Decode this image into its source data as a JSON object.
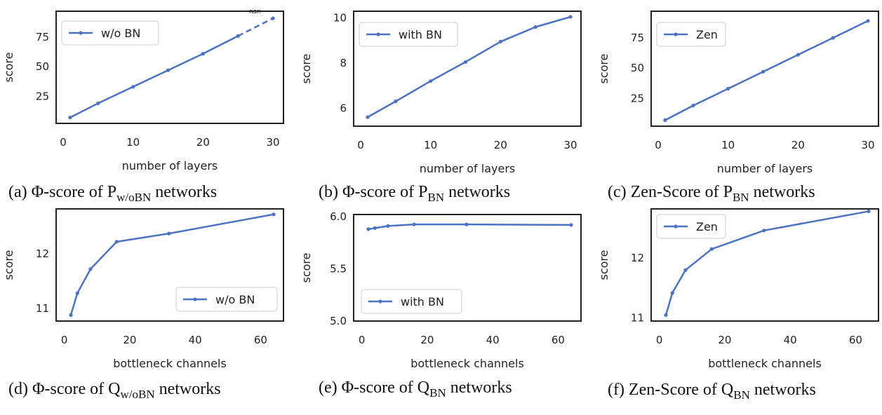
{
  "colors": {
    "line": "#4c72c4",
    "frame": "#222222"
  },
  "chart_data": [
    {
      "type": "line",
      "xlabel": "number of layers",
      "ylabel": "score",
      "xlim": [
        -1,
        31.5
      ],
      "ylim": [
        2,
        97
      ],
      "xticks": [
        0,
        10,
        20,
        30
      ],
      "yticks": [
        25,
        50,
        75
      ],
      "legend": {
        "label": "w/o BN",
        "position": "top-left"
      },
      "x": [
        1,
        5,
        10,
        15,
        20,
        25
      ],
      "y": [
        7,
        19,
        33,
        47,
        61,
        76
      ],
      "dashed_segment": {
        "x": [
          25,
          30
        ],
        "y": [
          76,
          91
        ]
      },
      "annotation": "nan",
      "caption": {
        "prefix": "(a) Φ-score of P",
        "sub": "w/oBN",
        "suffix": " networks"
      }
    },
    {
      "type": "line",
      "xlabel": "number of layers",
      "ylabel": "score",
      "xlim": [
        -1,
        31.5
      ],
      "ylim": [
        5.2,
        10.3
      ],
      "xticks": [
        0,
        10,
        20,
        30
      ],
      "yticks": [
        6,
        8,
        10
      ],
      "legend": {
        "label": "with BN",
        "position": "top-left"
      },
      "x": [
        1,
        5,
        10,
        15,
        20,
        25,
        30
      ],
      "y": [
        5.6,
        6.3,
        7.2,
        8.05,
        8.95,
        9.6,
        10.05
      ],
      "caption": {
        "prefix": "(b) Φ-score of P",
        "sub": "BN",
        "suffix": " networks"
      }
    },
    {
      "type": "line",
      "xlabel": "number of layers",
      "ylabel": "score",
      "xlim": [
        -1,
        31.5
      ],
      "ylim": [
        2,
        97
      ],
      "xticks": [
        0,
        10,
        20,
        30
      ],
      "yticks": [
        25,
        50,
        75
      ],
      "legend": {
        "label": "Zen",
        "position": "top-left"
      },
      "x": [
        1,
        5,
        10,
        15,
        20,
        25,
        30
      ],
      "y": [
        7,
        19,
        33,
        47,
        61,
        75,
        89
      ],
      "caption": {
        "prefix": "(c) Zen-Score of P",
        "sub": "BN",
        "suffix": " networks"
      }
    },
    {
      "type": "line",
      "xlabel": "bottleneck channels",
      "ylabel": "score",
      "xlim": [
        -2.5,
        67
      ],
      "ylim": [
        10.77,
        12.82
      ],
      "xticks": [
        0,
        20,
        40,
        60
      ],
      "yticks": [
        11,
        12
      ],
      "legend": {
        "label": "w/o BN",
        "position": "lower-right"
      },
      "x": [
        2,
        4,
        8,
        16,
        32,
        64
      ],
      "y": [
        10.88,
        11.28,
        11.72,
        12.22,
        12.37,
        12.72
      ],
      "caption": {
        "prefix": "(d) Φ-score of Q",
        "sub": "w/oBN",
        "suffix": " networks"
      }
    },
    {
      "type": "line",
      "xlabel": "bottleneck channels",
      "ylabel": "score",
      "xlim": [
        -2.5,
        67
      ],
      "ylim": [
        5.0,
        6.02
      ],
      "xticks": [
        0,
        20,
        40,
        60
      ],
      "yticks": [
        5.0,
        5.5,
        6.0
      ],
      "ytick_labels": [
        "5.0",
        "5.5",
        "6.0"
      ],
      "legend": {
        "label": "with BN",
        "position": "lower-left"
      },
      "x": [
        2,
        4,
        8,
        16,
        32,
        64
      ],
      "y": [
        5.88,
        5.89,
        5.91,
        5.925,
        5.925,
        5.92
      ],
      "caption": {
        "prefix": "(e) Φ-score of Q",
        "sub": "BN",
        "suffix": " networks"
      }
    },
    {
      "type": "line",
      "xlabel": "bottleneck channels",
      "ylabel": "score",
      "xlim": [
        -2.5,
        67
      ],
      "ylim": [
        10.95,
        12.82
      ],
      "xticks": [
        0,
        20,
        40,
        60
      ],
      "yticks": [
        11,
        12
      ],
      "legend": {
        "label": "Zen",
        "position": "top-left"
      },
      "x": [
        2,
        4,
        8,
        16,
        32,
        64
      ],
      "y": [
        11.05,
        11.42,
        11.8,
        12.15,
        12.46,
        12.78
      ],
      "caption": {
        "prefix": "(f) Zen-Score of Q",
        "sub": "BN",
        "suffix": " networks"
      }
    }
  ]
}
